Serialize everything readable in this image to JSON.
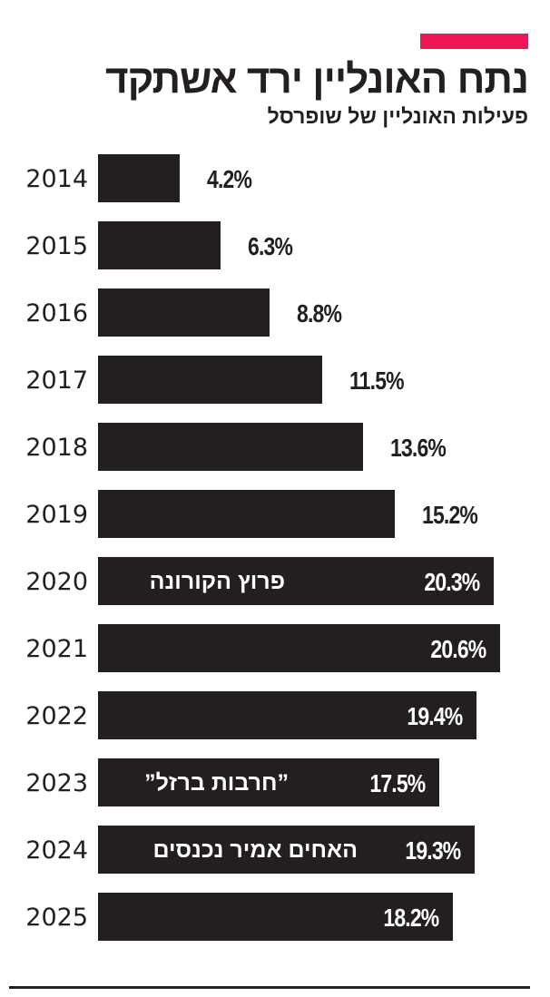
{
  "header": {
    "title": "נתח האונליין ירד אשתקד",
    "subtitle": "פעילות האונליין של שופרסל"
  },
  "colors": {
    "accent": "#ee1558",
    "bar": "#231f20",
    "text": "#231f20",
    "label_inside": "#ffffff"
  },
  "chart_data": {
    "type": "bar",
    "orientation": "horizontal",
    "title": "נתח האונליין ירד אשתקד",
    "subtitle": "פעילות האונליין של שופרסל",
    "xlabel": "",
    "ylabel": "",
    "unit": "%",
    "categories": [
      "2014",
      "2015",
      "2016",
      "2017",
      "2018",
      "2019",
      "2020",
      "2021",
      "2022",
      "2023",
      "2024",
      "2025"
    ],
    "values": [
      4.2,
      6.3,
      8.8,
      11.5,
      13.6,
      15.2,
      20.3,
      20.6,
      19.4,
      17.5,
      19.3,
      18.2
    ],
    "labels": [
      "4.2%",
      "6.3%",
      "8.8%",
      "11.5%",
      "13.6%",
      "15.2%",
      "20.3%",
      "20.6%",
      "19.4%",
      "17.5%",
      "19.3%",
      "18.2%"
    ],
    "annotations": [
      {
        "category": "2020",
        "text": "פרוץ הקורונה"
      },
      {
        "category": "2023",
        "text": "”חרבות ברזל”"
      },
      {
        "category": "2024",
        "text": "האחים אמיר נכנסים"
      }
    ],
    "grid": false,
    "legend": null
  },
  "rows": [
    {
      "year": "2014",
      "label": "4.2%",
      "note": ""
    },
    {
      "year": "2015",
      "label": "6.3%",
      "note": ""
    },
    {
      "year": "2016",
      "label": "8.8%",
      "note": ""
    },
    {
      "year": "2017",
      "label": "11.5%",
      "note": ""
    },
    {
      "year": "2018",
      "label": "13.6%",
      "note": ""
    },
    {
      "year": "2019",
      "label": "15.2%",
      "note": ""
    },
    {
      "year": "2020",
      "label": "20.3%",
      "note": "פרוץ הקורונה"
    },
    {
      "year": "2021",
      "label": "20.6%",
      "note": ""
    },
    {
      "year": "2022",
      "label": "19.4%",
      "note": ""
    },
    {
      "year": "2023",
      "label": "17.5%",
      "note": "”חרבות ברזל”"
    },
    {
      "year": "2024",
      "label": "19.3%",
      "note": "האחים אמיר נכנסים"
    },
    {
      "year": "2025",
      "label": "18.2%",
      "note": ""
    }
  ]
}
